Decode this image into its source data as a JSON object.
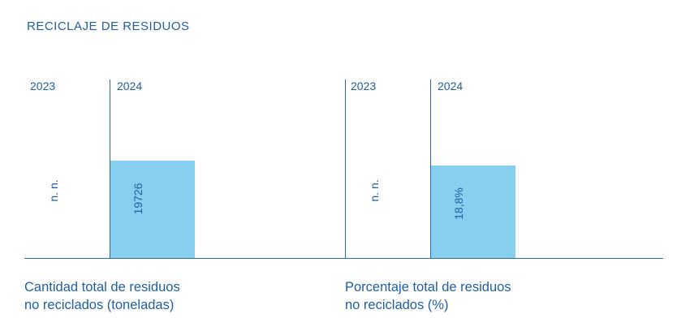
{
  "title": "RECICLAJE DE RESIDUOS",
  "colors": {
    "bar": "#86cfef",
    "text": "#1f5f9e",
    "axis": "#2b6ca8"
  },
  "chart_data": [
    {
      "type": "bar",
      "categories": [
        "2023",
        "2024"
      ],
      "values": [
        null,
        19726
      ],
      "labels": [
        "n. n.",
        "19726"
      ],
      "caption": [
        "Cantidad total de residuos",
        "no reciclados (toneladas)"
      ]
    },
    {
      "type": "bar",
      "categories": [
        "2023",
        "2024"
      ],
      "values": [
        null,
        18.8
      ],
      "labels": [
        "n. n.",
        "18,8%"
      ],
      "caption": [
        "Porcentaje total de residuos",
        "no reciclados (%)"
      ]
    }
  ]
}
